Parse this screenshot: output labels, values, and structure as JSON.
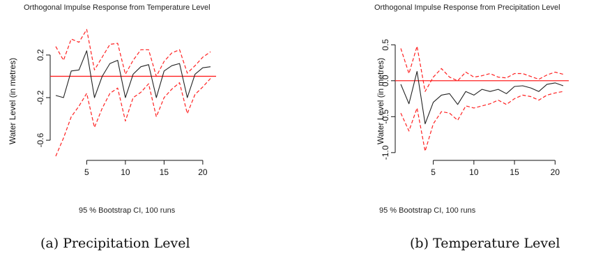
{
  "panels": [
    {
      "title": "Orthogonal Impulse Response from Temperature Level",
      "ylabel": "Water Level (in metres)",
      "xlabel": "95 % Bootstrap CI,  100 runs",
      "caption": "(a) Precipitation Level"
    },
    {
      "title": "Orthogonal Impulse Response from Precipitation Level",
      "ylabel": "Water Level (in metres)",
      "xlabel": "95 % Bootstrap CI,  100 runs",
      "caption": "(b) Temperature Level"
    }
  ],
  "colors": {
    "response": "#222222",
    "ci": "#ff2020",
    "zero": "#ff2020"
  },
  "chart_data": [
    {
      "type": "line",
      "title": "Orthogonal Impulse Response from Temperature Level",
      "xlabel": "95 % Bootstrap CI,  100 runs",
      "ylabel": "Water Level (in metres)",
      "xlim": [
        1,
        21
      ],
      "ylim": [
        -0.75,
        0.35
      ],
      "xticks": [
        5,
        10,
        15,
        20
      ],
      "yticks": [
        0.2,
        -0.2,
        -0.6
      ],
      "ytick_labels": [
        "0.2",
        "-0.2",
        "-0.6"
      ],
      "x": [
        1,
        2,
        3,
        4,
        5,
        6,
        7,
        8,
        9,
        10,
        11,
        12,
        13,
        14,
        15,
        16,
        17,
        18,
        19,
        20,
        21
      ],
      "series": [
        {
          "style": "solid",
          "values": [
            -0.18,
            -0.2,
            0.05,
            0.06,
            0.24,
            -0.2,
            0.0,
            0.12,
            0.15,
            -0.2,
            0.02,
            0.09,
            0.11,
            -0.2,
            0.05,
            0.1,
            0.12,
            -0.2,
            0.02,
            0.08,
            0.09
          ]
        },
        {
          "style": "dashed",
          "values": [
            0.28,
            0.15,
            0.35,
            0.32,
            0.44,
            0.06,
            0.18,
            0.3,
            0.31,
            0.02,
            0.15,
            0.25,
            0.25,
            0.0,
            0.14,
            0.22,
            0.25,
            0.03,
            0.1,
            0.18,
            0.23
          ]
        },
        {
          "style": "dashed",
          "values": [
            -0.75,
            -0.58,
            -0.38,
            -0.28,
            -0.16,
            -0.48,
            -0.3,
            -0.16,
            -0.11,
            -0.42,
            -0.2,
            -0.15,
            -0.07,
            -0.38,
            -0.2,
            -0.12,
            -0.06,
            -0.35,
            -0.17,
            -0.1,
            -0.02
          ]
        }
      ],
      "hline": 0
    },
    {
      "type": "line",
      "title": "Orthogonal Impulse Response from Precipitation Level",
      "xlabel": "95 % Bootstrap CI,  100 runs",
      "ylabel": "Water Level (in metres)",
      "xlim": [
        1,
        21
      ],
      "ylim": [
        -1.05,
        0.58
      ],
      "xticks": [
        5,
        10,
        15,
        20
      ],
      "yticks": [
        0.5,
        0.0,
        -0.5,
        -1.0
      ],
      "ytick_labels": [
        "0.5",
        "0.0",
        "-0.5",
        "-1.0"
      ],
      "x": [
        1,
        2,
        3,
        4,
        5,
        6,
        7,
        8,
        9,
        10,
        11,
        12,
        13,
        14,
        15,
        16,
        17,
        18,
        19,
        20,
        21
      ],
      "series": [
        {
          "style": "solid",
          "values": [
            -0.05,
            -0.32,
            0.13,
            -0.6,
            -0.3,
            -0.2,
            -0.18,
            -0.33,
            -0.15,
            -0.2,
            -0.12,
            -0.15,
            -0.12,
            -0.18,
            -0.08,
            -0.07,
            -0.1,
            -0.15,
            -0.05,
            -0.03,
            -0.07
          ]
        },
        {
          "style": "dashed",
          "values": [
            0.45,
            0.1,
            0.48,
            -0.15,
            0.05,
            0.17,
            0.05,
            0.0,
            0.12,
            0.05,
            0.07,
            0.1,
            0.05,
            0.04,
            0.1,
            0.1,
            0.06,
            0.02,
            0.08,
            0.12,
            0.09
          ]
        },
        {
          "style": "dashed",
          "values": [
            -0.45,
            -0.7,
            -0.38,
            -0.98,
            -0.6,
            -0.43,
            -0.45,
            -0.55,
            -0.35,
            -0.38,
            -0.35,
            -0.32,
            -0.27,
            -0.33,
            -0.25,
            -0.2,
            -0.22,
            -0.27,
            -0.2,
            -0.17,
            -0.15
          ]
        }
      ],
      "hline": 0
    }
  ]
}
